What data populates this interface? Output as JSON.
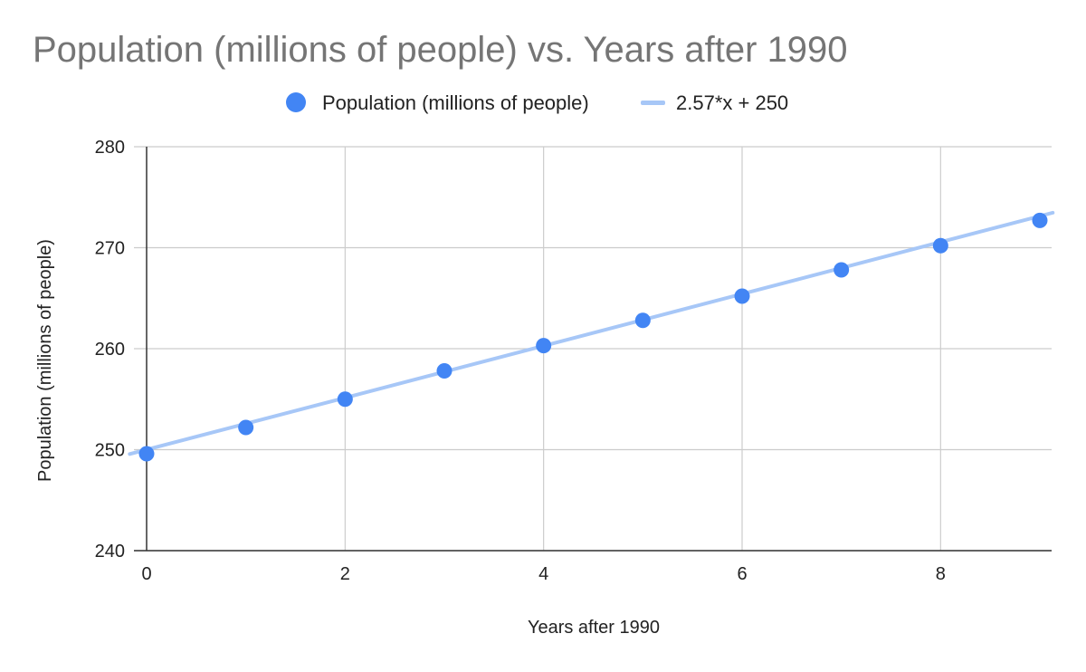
{
  "chart_data": {
    "type": "scatter",
    "title": "Population (millions of people) vs. Years after 1990",
    "xlabel": "Years after 1990",
    "ylabel": "Population (millions of people)",
    "xlim": [
      0,
      9
    ],
    "ylim": [
      240,
      280
    ],
    "x_ticks": [
      "0",
      "2",
      "4",
      "6",
      "8"
    ],
    "x_tick_values": [
      0,
      2,
      4,
      6,
      8
    ],
    "y_ticks": [
      "240",
      "250",
      "260",
      "270",
      "280"
    ],
    "y_tick_values": [
      240,
      250,
      260,
      270,
      280
    ],
    "grid": true,
    "legend_position": "top",
    "series": [
      {
        "name": "Population (millions of people)",
        "kind": "points",
        "color": "#4285f4",
        "x": [
          0,
          1,
          2,
          3,
          4,
          5,
          6,
          7,
          8,
          9
        ],
        "y": [
          249.6,
          252.2,
          255.0,
          257.8,
          260.3,
          262.8,
          265.2,
          267.8,
          270.2,
          272.7
        ]
      },
      {
        "name": "2.57*x + 250",
        "kind": "trendline",
        "color": "#a7c7f7",
        "slope": 2.57,
        "intercept": 250
      }
    ]
  }
}
